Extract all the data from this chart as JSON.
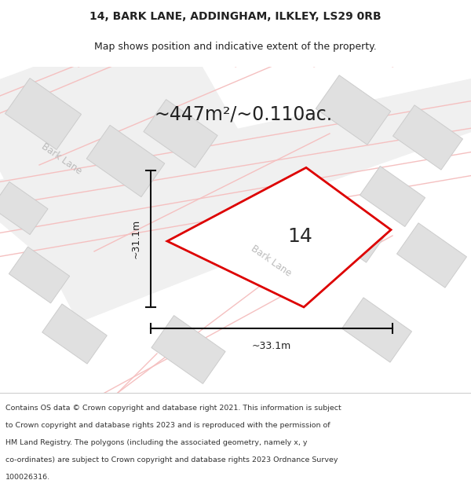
{
  "title_line1": "14, BARK LANE, ADDINGHAM, ILKLEY, LS29 0RB",
  "title_line2": "Map shows position and indicative extent of the property.",
  "area_text": "~447m²/~0.110ac.",
  "label_number": "14",
  "dim_vertical": "~31.1m",
  "dim_horizontal": "~33.1m",
  "bark_lane_label1": "Bark Lane",
  "bark_lane_label2": "Bark Lane",
  "footer_lines": [
    "Contains OS data © Crown copyright and database right 2021. This information is subject",
    "to Crown copyright and database rights 2023 and is reproduced with the permission of",
    "HM Land Registry. The polygons (including the associated geometry, namely x, y",
    "co-ordinates) are subject to Crown copyright and database rights 2023 Ordnance Survey",
    "100026316."
  ],
  "plot_color": "#dd0000",
  "building_color": "#e0e0e0",
  "building_edge": "#cccccc",
  "road_fill": "#f0f0f0",
  "road_stripe": "#f5c0c0",
  "dim_color": "#111111",
  "label_color": "#bbbbbb",
  "text_color": "#222222",
  "footer_color": "#333333",
  "map_bg": "#fafafa",
  "title_bg": "#ffffff",
  "footer_bg": "#ffffff"
}
